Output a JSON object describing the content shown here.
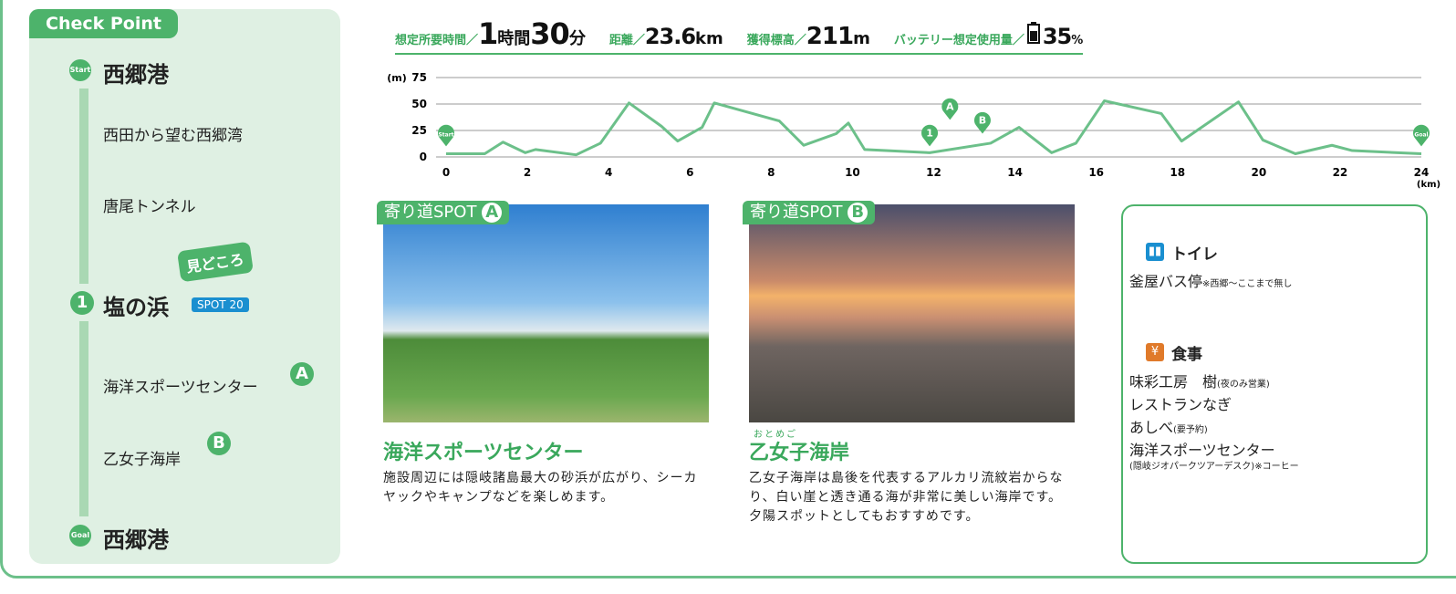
{
  "checkpoints": {
    "title": "Check Point",
    "start_badge": "Start",
    "start": "西郷港",
    "items": [
      "西田から望む西郷湾",
      "唐尾トンネル"
    ],
    "highlight": "見どころ",
    "spot_number": "1",
    "spot": "塩の浜",
    "spot_tag": "SPOT 20",
    "sub": [
      {
        "name": "海洋スポーツセンター",
        "mark": "A"
      },
      {
        "name": "乙女子海岸",
        "mark": "B"
      }
    ],
    "goal_badge": "Goal",
    "goal": "西郷港"
  },
  "summary": {
    "duration": {
      "label": "想定所要時間／",
      "hours": 1,
      "hours_unit": "時間",
      "minutes": 30,
      "minutes_unit": "分"
    },
    "distance": {
      "label": "距離／",
      "value": 23.6,
      "unit": "km"
    },
    "gain": {
      "label": "獲得標高／",
      "value": 211,
      "unit": "m"
    },
    "battery": {
      "label": "バッテリー想定使用量／",
      "value": 35,
      "unit": "%"
    }
  },
  "chart_data": {
    "type": "line",
    "x": [
      0,
      0.95,
      1.4,
      1.95,
      2.2,
      3.2,
      3.8,
      4.5,
      5.3,
      5.7,
      6.3,
      6.6,
      8.2,
      8.8,
      9.6,
      9.9,
      10.3,
      11.9,
      13.4,
      14.1,
      14.9,
      15.5,
      16.2,
      17.6,
      18.1,
      19.5,
      20.1,
      20.9,
      21.8,
      22.3,
      24
    ],
    "values": [
      3,
      3,
      14,
      4,
      7,
      2,
      13,
      51,
      29,
      15,
      28,
      51,
      34,
      11,
      22,
      32,
      7,
      4,
      13,
      28,
      4,
      13,
      53,
      41,
      15,
      52,
      16,
      3,
      11,
      6,
      3
    ],
    "color": "#6cc08a",
    "xlim": [
      0,
      24
    ],
    "ylim": [
      0,
      75
    ],
    "xticks": [
      0,
      2,
      4,
      6,
      8,
      10,
      12,
      14,
      16,
      18,
      20,
      22,
      24
    ],
    "yticks": [
      0,
      25,
      50,
      75
    ],
    "xlabel": "(km)",
    "ylabel": "(m)",
    "grid": true,
    "annotations": [
      {
        "text": "Start",
        "x": 0,
        "y": 10
      },
      {
        "text": "1",
        "x": 11.9,
        "y": 10
      },
      {
        "text": "A",
        "x": 12.4,
        "y": 35
      },
      {
        "text": "B",
        "x": 13.2,
        "y": 22
      },
      {
        "text": "Goal",
        "x": 24,
        "y": 10
      }
    ]
  },
  "spots": [
    {
      "tag": "寄り道SPOT",
      "mark": "A",
      "title": "海洋スポーツセンター",
      "description": "施設周辺には隠岐諸島最大の砂浜が広がり、シーカヤックやキャンプなどを楽しめます。"
    },
    {
      "tag": "寄り道SPOT",
      "mark": "B",
      "ruby": "おとめご",
      "title": "乙女子海岸",
      "description": "乙女子海岸は島後を代表するアルカリ流紋岩からなり、白い崖と透き通る海が非常に美しい海岸です。夕陽スポットとしてもおすすめです。"
    }
  ],
  "facilities": {
    "toilet": {
      "title": "トイレ",
      "items": [
        {
          "text": "釜屋バス停",
          "note": "※西郷〜ここまで無し"
        }
      ]
    },
    "meal": {
      "title": "食事",
      "items": [
        {
          "text": "味彩工房　樹",
          "note": "(夜のみ営業)"
        },
        {
          "text": "レストランなぎ"
        },
        {
          "text": "あしべ",
          "note": "(要予約)"
        },
        {
          "text": "海洋スポーツセンター",
          "note": "(隠岐ジオパークツアーデスク)※コーヒー"
        }
      ]
    }
  }
}
